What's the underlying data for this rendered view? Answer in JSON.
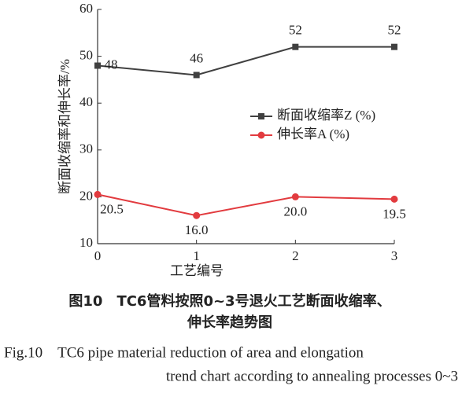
{
  "chart_data": {
    "type": "line",
    "x_label": "工艺编号",
    "y_label": "断面收缩率和伸长率/%",
    "x": [
      0,
      1,
      2,
      3
    ],
    "xlim": [
      0,
      3
    ],
    "xticks": [
      0,
      1,
      2,
      3
    ],
    "ylim": [
      10,
      60
    ],
    "yticks": [
      10,
      20,
      30,
      40,
      50,
      60
    ],
    "legend": "upper right",
    "series": [
      {
        "name": "断面收缩率Z (%)",
        "color": "#404040",
        "marker": "square",
        "values": [
          48,
          46,
          52,
          52
        ],
        "value_labels": [
          "48",
          "46",
          "52",
          "52"
        ]
      },
      {
        "name": "伸长率A (%)",
        "color": "#e23b3f",
        "marker": "circle",
        "values": [
          20.5,
          16.0,
          20.0,
          19.5
        ],
        "value_labels": [
          "20.5",
          "16.0",
          "20.0",
          "19.5"
        ]
      }
    ]
  },
  "caption": {
    "zh": [
      "图10　TC6管料按照0~3号退火工艺断面收缩率、",
      "伸长率趋势图"
    ],
    "en": [
      "Fig.10　TC6 pipe material reduction of area and elongation",
      "trend chart according to annealing processes 0~3"
    ]
  }
}
